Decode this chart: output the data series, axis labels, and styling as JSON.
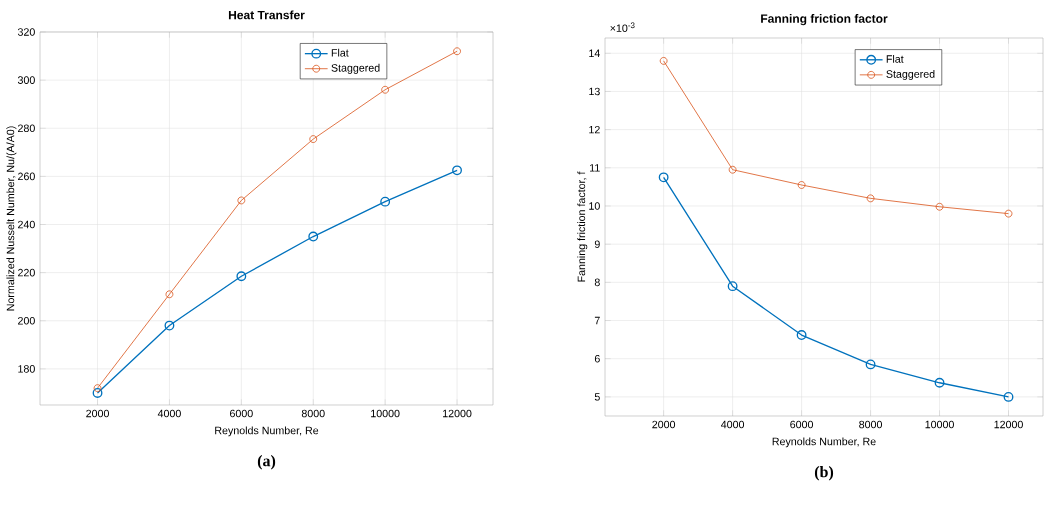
{
  "chart_data": [
    {
      "type": "line",
      "title": "Heat Transfer",
      "xlabel": "Reynolds Number, Re",
      "ylabel": "Normalized Nusselt Number, Nu/(A/A0)",
      "x": [
        2000,
        4000,
        6000,
        8000,
        10000,
        12000
      ],
      "xlim": [
        400,
        13000
      ],
      "ylim": [
        165,
        320
      ],
      "xticks": [
        2000,
        4000,
        6000,
        8000,
        10000,
        12000
      ],
      "yticks": [
        180,
        200,
        220,
        240,
        260,
        280,
        300,
        320
      ],
      "grid": true,
      "legend": "top right",
      "marker": "circle",
      "series": [
        {
          "name": "Flat",
          "color": "#0072bd",
          "values": [
            170,
            198,
            218.5,
            235,
            249.5,
            262.5
          ]
        },
        {
          "name": "Staggered",
          "color": "#d95319",
          "values": [
            172,
            211,
            250,
            275.5,
            296,
            312
          ]
        }
      ],
      "annotations": [
        "**(a)**"
      ]
    },
    {
      "type": "line",
      "title": "Fanning friction factor",
      "xlabel": "Reynolds Number, Re",
      "ylabel": "Fanning friction factor, f",
      "x": [
        2000,
        4000,
        6000,
        8000,
        10000,
        12000
      ],
      "xlim": [
        300,
        13000
      ],
      "ylim": [
        4.5,
        14.4
      ],
      "xticks": [
        2000,
        4000,
        6000,
        8000,
        10000,
        12000
      ],
      "yticks": [
        5,
        6,
        7,
        8,
        9,
        10,
        11,
        12,
        13,
        14
      ],
      "grid": true,
      "legend": "top right",
      "marker": "circle",
      "series": [
        {
          "name": "Flat",
          "color": "#0072bd",
          "values": [
            10.75,
            7.9,
            6.62,
            5.85,
            5.37,
            5.0
          ]
        },
        {
          "name": "Staggered",
          "color": "#d95319",
          "values": [
            13.8,
            10.95,
            10.55,
            10.2,
            9.98,
            9.8
          ]
        }
      ],
      "annotations": [
        "×10$^{-3}$",
        "**(b)**"
      ]
    }
  ]
}
